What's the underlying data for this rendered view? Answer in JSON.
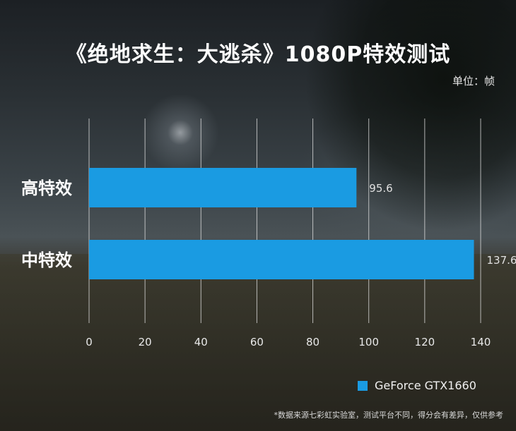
{
  "chart_data": {
    "type": "bar",
    "orientation": "horizontal",
    "title": "《绝地求生：大逃杀》1080P特效测试",
    "unit_label": "单位：帧",
    "categories": [
      "高特效",
      "中特效"
    ],
    "series": [
      {
        "name": "GeForce GTX1660",
        "values": [
          95.6,
          137.6
        ],
        "color": "#1a9be2"
      }
    ],
    "value_labels": [
      "95.6",
      "137.6"
    ],
    "xlim": [
      0,
      140
    ],
    "x_ticks": [
      "0",
      "20",
      "40",
      "60",
      "80",
      "100",
      "120",
      "140"
    ],
    "grid": true,
    "legend_position": "bottom-right"
  },
  "footnote": "*数据来源七彩虹实验室，测试平台不同，得分会有差异，仅供参考"
}
